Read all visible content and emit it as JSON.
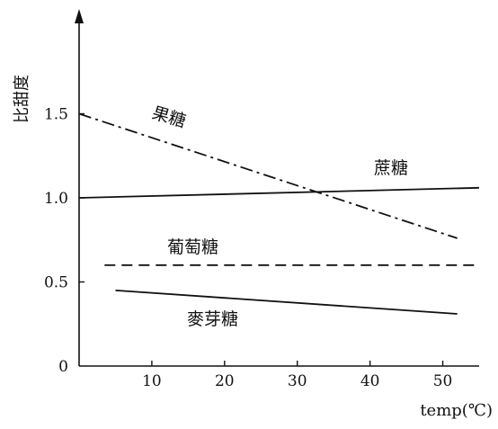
{
  "chart_data": {
    "type": "line",
    "ylabel": "比甜度",
    "xlabel": "temp(℃)",
    "xlim": [
      0,
      55
    ],
    "ylim": [
      0,
      2.0
    ],
    "xticks": [
      10,
      20,
      30,
      40,
      50
    ],
    "yticks": [
      0.5,
      1.0,
      1.5
    ],
    "x_origin_label": "0",
    "grid": false,
    "legend": "none",
    "series": [
      {
        "name": "果糖",
        "style": "dashdot",
        "x": [
          0,
          52
        ],
        "y": [
          1.5,
          0.76
        ]
      },
      {
        "name": "蔗糖",
        "style": "solid",
        "x": [
          0,
          55
        ],
        "y": [
          1.0,
          1.06
        ]
      },
      {
        "name": "葡萄糖",
        "style": "dashed",
        "x": [
          3.5,
          55
        ],
        "y": [
          0.6,
          0.6
        ]
      },
      {
        "name": "麥芽糖",
        "style": "solid",
        "x": [
          5,
          52
        ],
        "y": [
          0.45,
          0.31
        ]
      }
    ]
  }
}
